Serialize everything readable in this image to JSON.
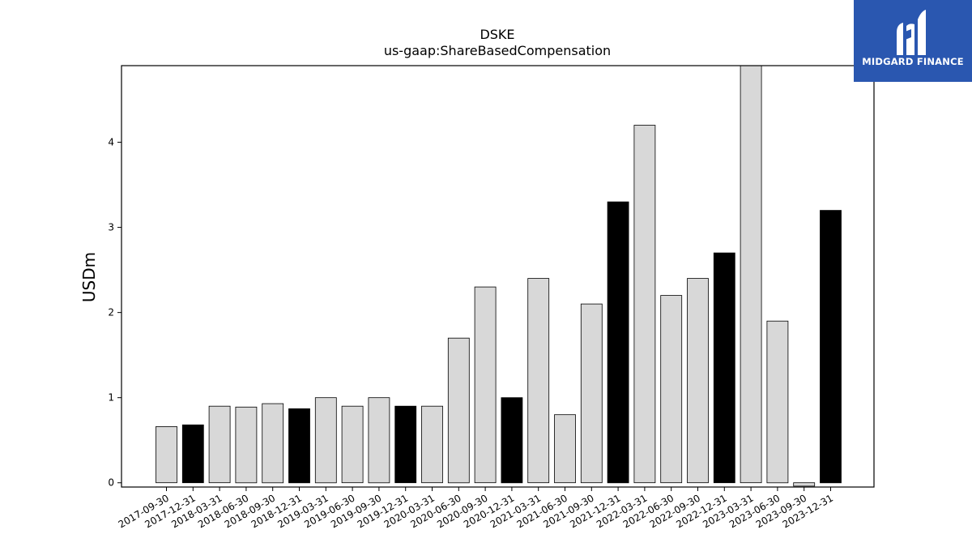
{
  "brand": {
    "name": "MIDGARD FINANCE",
    "logo_icon": "midgard-m-logo-icon",
    "background_color": "#2a57b0"
  },
  "chart_data": {
    "type": "bar",
    "title": "DSKE",
    "subtitle": "us-gaap:ShareBasedCompensation",
    "xlabel": "",
    "ylabel": "USDm",
    "ylim": [
      -0.05,
      4.9
    ],
    "yticks": [
      0,
      1,
      2,
      3,
      4
    ],
    "grid": false,
    "legend": "none",
    "colors": {
      "quarter": "#d8d8d8",
      "year_end": "#000000",
      "edge": "#000000"
    },
    "categories": [
      "2017-09-30",
      "2017-12-31",
      "2018-03-31",
      "2018-06-30",
      "2018-09-30",
      "2018-12-31",
      "2019-03-31",
      "2019-06-30",
      "2019-09-30",
      "2019-12-31",
      "2020-03-31",
      "2020-06-30",
      "2020-09-30",
      "2020-12-31",
      "2021-03-31",
      "2021-06-30",
      "2021-09-30",
      "2021-12-31",
      "2022-03-31",
      "2022-06-30",
      "2022-09-30",
      "2022-12-31",
      "2023-03-31",
      "2023-06-30",
      "2023-09-30",
      "2023-12-31"
    ],
    "values": [
      0.66,
      0.68,
      0.9,
      0.89,
      0.93,
      0.87,
      1.0,
      0.9,
      1.0,
      0.9,
      0.9,
      1.7,
      2.3,
      1.0,
      2.4,
      0.8,
      2.1,
      3.3,
      4.2,
      2.2,
      2.4,
      2.7,
      4.9,
      1.9,
      -0.04,
      3.2
    ]
  }
}
